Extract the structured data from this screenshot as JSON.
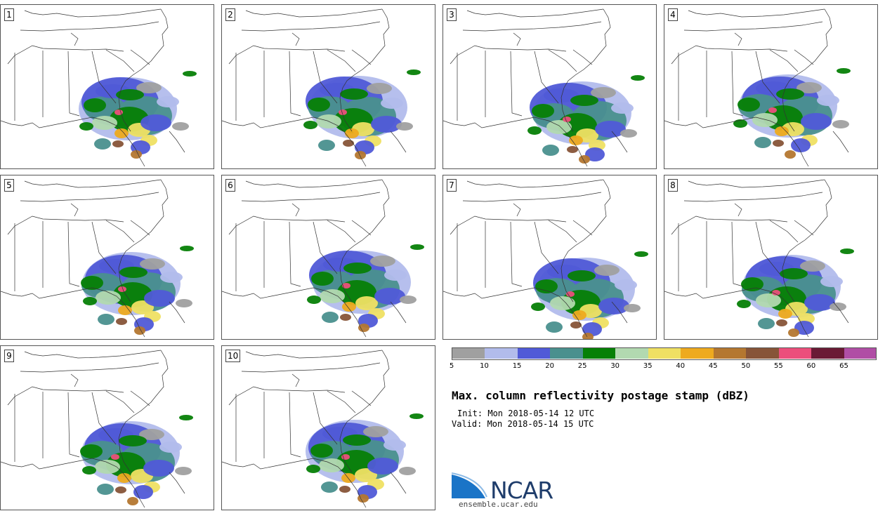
{
  "panels": [
    {
      "label": "1"
    },
    {
      "label": "2"
    },
    {
      "label": "3"
    },
    {
      "label": "4"
    },
    {
      "label": "5"
    },
    {
      "label": "6"
    },
    {
      "label": "7"
    },
    {
      "label": "8"
    },
    {
      "label": "9"
    },
    {
      "label": "10"
    }
  ],
  "legend": {
    "colors": [
      "#a0a0a0",
      "#b2bcec",
      "#505ad7",
      "#4a908e",
      "#068006",
      "#b2d9b0",
      "#efe063",
      "#eeaa1f",
      "#b47730",
      "#875438",
      "#ec4f7c",
      "#6a1a35",
      "#b04ea5"
    ],
    "ticks": [
      "5",
      "10",
      "15",
      "20",
      "25",
      "30",
      "35",
      "40",
      "45",
      "50",
      "55",
      "60",
      "65"
    ]
  },
  "title": "Max. column reflectivity postage stamp (dBZ)",
  "init": "Init: Mon 2018-05-14 12 UTC",
  "valid": "Valid: Mon 2018-05-14 15 UTC",
  "logo": {
    "text": "NCAR",
    "color": "#1f3d6b",
    "swoosh_color": "#1a74c7"
  },
  "site": "ensemble.ucar.edu"
}
